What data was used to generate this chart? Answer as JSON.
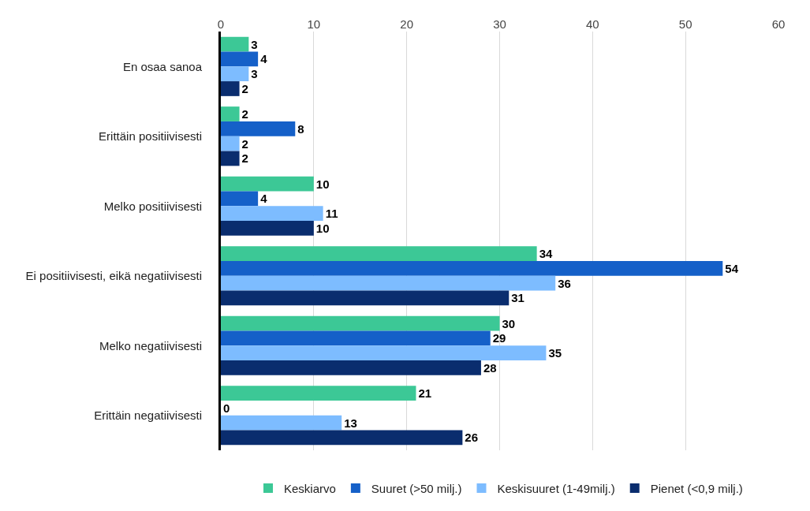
{
  "chart_data": {
    "type": "bar",
    "orientation": "horizontal",
    "categories": [
      "En osaa sanoa",
      "Erittäin positiivisesti",
      "Melko positiivisesti",
      "Ei positiivisesti, eikä negatiivisesti",
      "Melko negatiivisesti",
      "Erittäin negatiivisesti"
    ],
    "series": [
      {
        "name": "Keskiarvo",
        "color": "#3cc896",
        "values": [
          3,
          2,
          10,
          34,
          30,
          21
        ]
      },
      {
        "name": "Suuret (>50 milj.)",
        "color": "#1560c8",
        "values": [
          4,
          8,
          4,
          54,
          29,
          0
        ]
      },
      {
        "name": "Keskisuuret (1-49milj.)",
        "color": "#7dbcff",
        "values": [
          3,
          2,
          11,
          36,
          35,
          13
        ]
      },
      {
        "name": "Pienet (<0,9 milj.)",
        "color": "#0a2d6e",
        "values": [
          2,
          2,
          10,
          31,
          28,
          26
        ]
      }
    ],
    "xlim": [
      0,
      60
    ],
    "xticks": [
      0,
      10,
      20,
      30,
      40,
      50,
      60
    ],
    "grid": "x",
    "legend": "bottom",
    "data_labels": true
  }
}
